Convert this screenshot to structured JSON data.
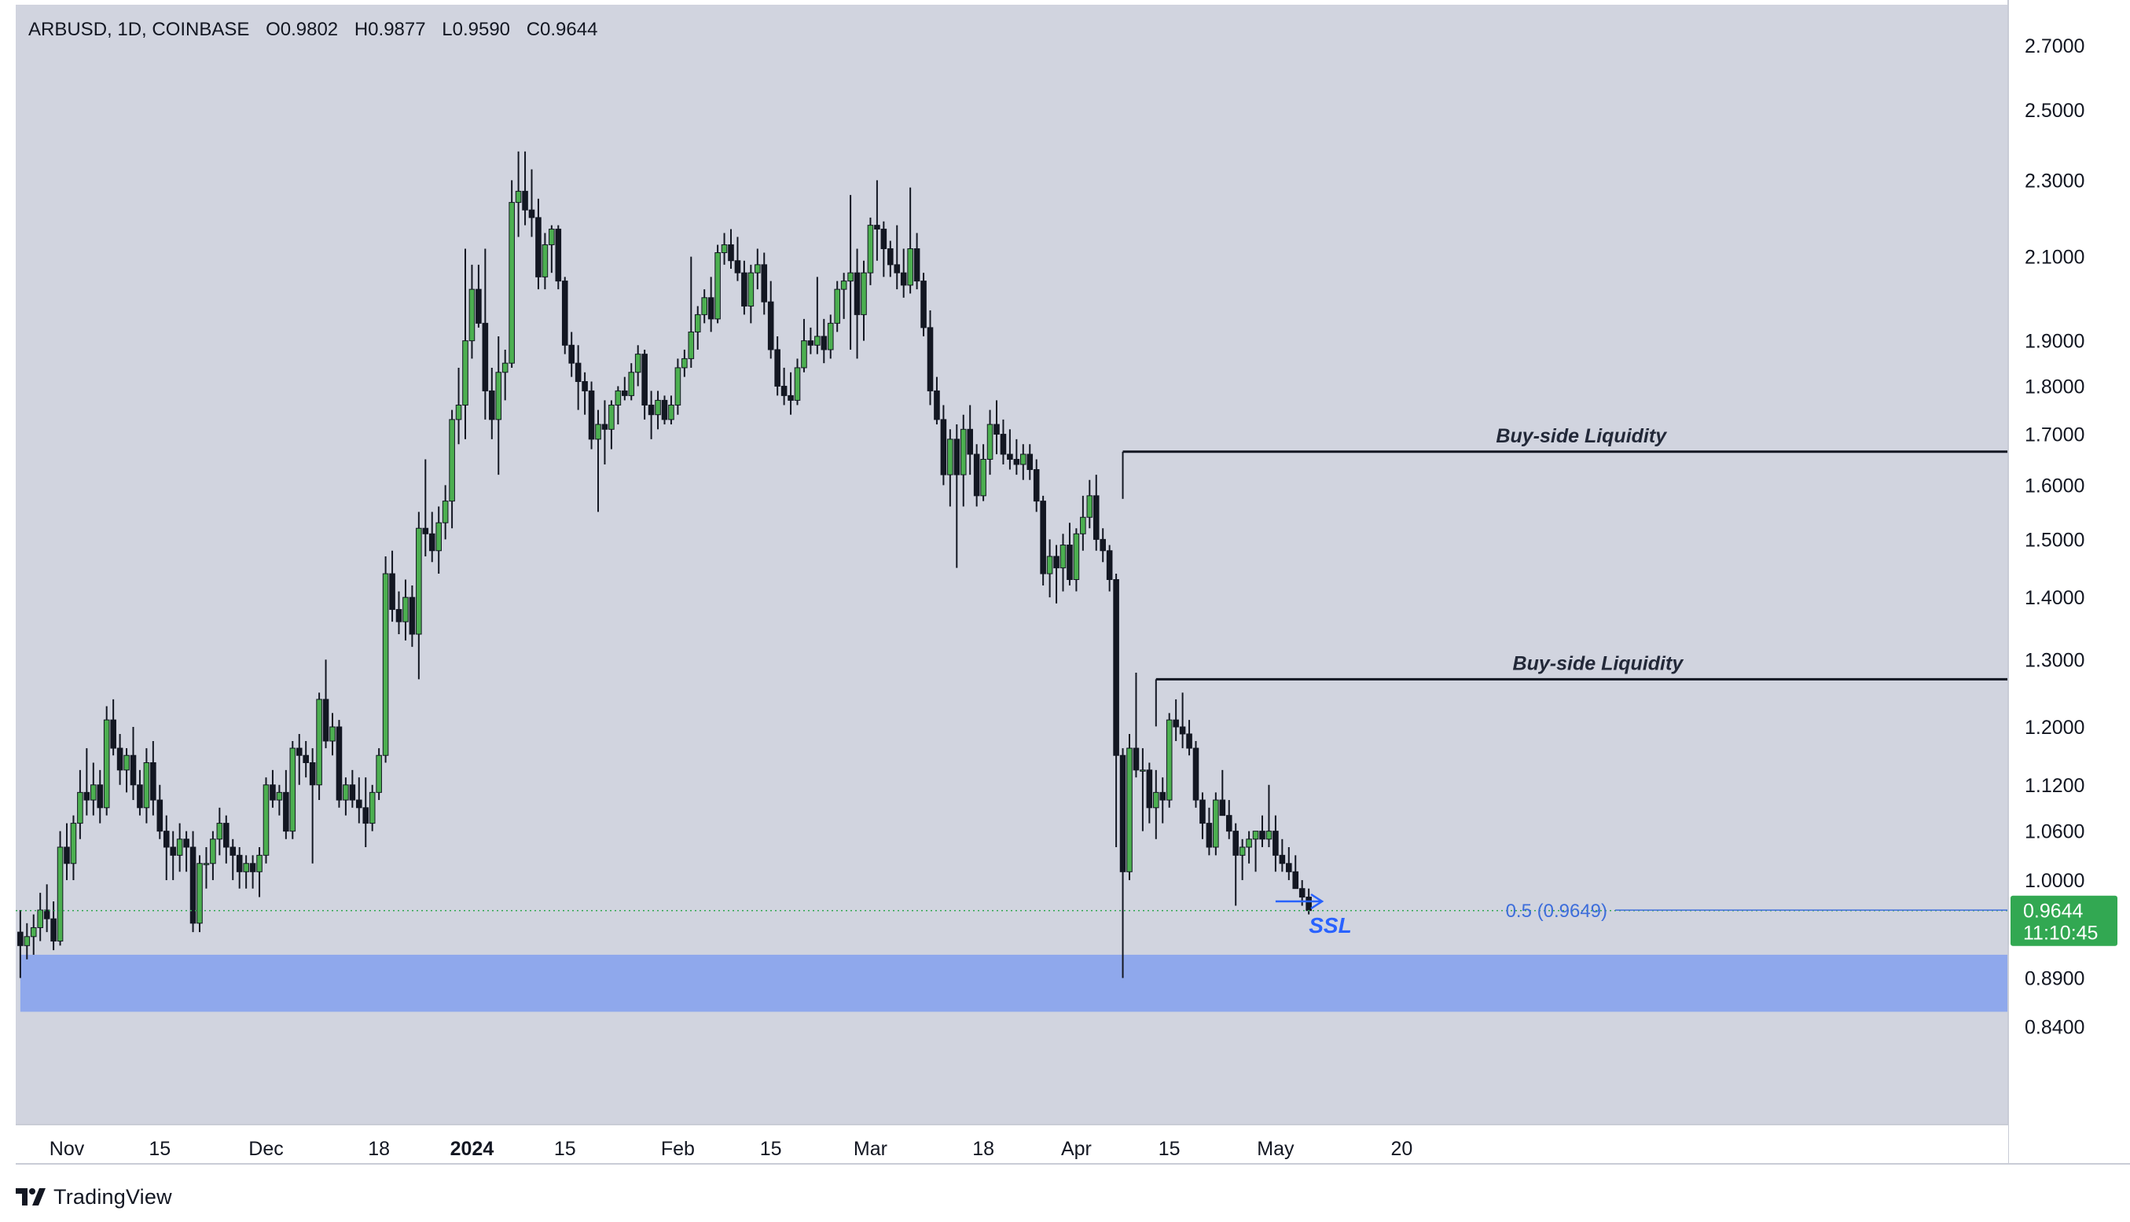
{
  "header": {
    "symbol": "ARBUSD, 1D, COINBASE",
    "open_label": "O",
    "open": "0.9802",
    "high_label": "H",
    "high": "0.9877",
    "low_label": "L",
    "low": "0.9590",
    "close_label": "C",
    "close": "0.9644"
  },
  "price_tag": {
    "price": "0.9644",
    "countdown": "11:10:45"
  },
  "brand": {
    "name": "TradingView"
  },
  "colors": {
    "background": "#d1d4df",
    "up": "#4caf50",
    "down": "#131722",
    "zone": "#8fa8ec",
    "ssl": "#2962ff",
    "fib": "#3d6ddb",
    "tag": "#32a852"
  },
  "chart_data": {
    "type": "candlestick",
    "y_scale": "log",
    "ylim": [
      0.79,
      2.72
    ],
    "y_ticks": [
      2.7,
      2.5,
      2.3,
      2.1,
      1.9,
      1.8,
      1.7,
      1.6,
      1.5,
      1.4,
      1.3,
      1.2,
      1.12,
      1.06,
      1.0,
      0.89,
      0.84
    ],
    "y_tick_labels": [
      "2.7000",
      "2.5000",
      "2.3000",
      "2.1000",
      "1.9000",
      "1.8000",
      "1.7000",
      "1.6000",
      "1.5000",
      "1.4000",
      "1.3000",
      "1.2000",
      "1.1200",
      "1.0600",
      "1.0000",
      "0.8900",
      "0.8400"
    ],
    "x_start": "2023-10-25",
    "x_end": "2024-05-23",
    "x_ticks": [
      {
        "date": "2023-11-01",
        "label": "Nov",
        "bold": false
      },
      {
        "date": "2023-11-15",
        "label": "15",
        "bold": false
      },
      {
        "date": "2023-12-01",
        "label": "Dec",
        "bold": false
      },
      {
        "date": "2023-12-18",
        "label": "18",
        "bold": false
      },
      {
        "date": "2024-01-01",
        "label": "2024",
        "bold": true
      },
      {
        "date": "2024-01-15",
        "label": "15",
        "bold": false
      },
      {
        "date": "2024-02-01",
        "label": "Feb",
        "bold": false
      },
      {
        "date": "2024-02-15",
        "label": "15",
        "bold": false
      },
      {
        "date": "2024-03-01",
        "label": "Mar",
        "bold": false
      },
      {
        "date": "2024-03-18",
        "label": "18",
        "bold": false
      },
      {
        "date": "2024-04-01",
        "label": "Apr",
        "bold": false
      },
      {
        "date": "2024-04-15",
        "label": "15",
        "bold": false
      },
      {
        "date": "2024-05-01",
        "label": "May",
        "bold": false
      },
      {
        "date": "2024-05-20",
        "label": "20",
        "bold": false
      }
    ],
    "first_date": "2023-10-25",
    "ohlc": [
      [
        0.94,
        0.965,
        0.89,
        0.925
      ],
      [
        0.925,
        0.95,
        0.91,
        0.935
      ],
      [
        0.935,
        0.96,
        0.915,
        0.945
      ],
      [
        0.945,
        0.985,
        0.93,
        0.965
      ],
      [
        0.965,
        0.995,
        0.94,
        0.955
      ],
      [
        0.955,
        0.975,
        0.92,
        0.93
      ],
      [
        0.93,
        1.06,
        0.925,
        1.04
      ],
      [
        1.04,
        1.07,
        1.0,
        1.02
      ],
      [
        1.02,
        1.08,
        1.0,
        1.07
      ],
      [
        1.07,
        1.14,
        1.05,
        1.11
      ],
      [
        1.11,
        1.17,
        1.08,
        1.1
      ],
      [
        1.1,
        1.15,
        1.08,
        1.12
      ],
      [
        1.12,
        1.14,
        1.07,
        1.09
      ],
      [
        1.09,
        1.23,
        1.08,
        1.21
      ],
      [
        1.21,
        1.24,
        1.16,
        1.17
      ],
      [
        1.17,
        1.19,
        1.12,
        1.14
      ],
      [
        1.14,
        1.17,
        1.11,
        1.16
      ],
      [
        1.16,
        1.2,
        1.1,
        1.12
      ],
      [
        1.12,
        1.14,
        1.08,
        1.09
      ],
      [
        1.09,
        1.17,
        1.07,
        1.15
      ],
      [
        1.15,
        1.18,
        1.08,
        1.1
      ],
      [
        1.1,
        1.12,
        1.05,
        1.06
      ],
      [
        1.06,
        1.08,
        1.0,
        1.04
      ],
      [
        1.04,
        1.06,
        1.0,
        1.03
      ],
      [
        1.03,
        1.07,
        1.01,
        1.05
      ],
      [
        1.05,
        1.06,
        1.01,
        1.04
      ],
      [
        1.04,
        1.06,
        0.94,
        0.95
      ],
      [
        0.95,
        1.03,
        0.94,
        1.02
      ],
      [
        1.02,
        1.04,
        0.99,
        1.02
      ],
      [
        1.02,
        1.06,
        1.0,
        1.05
      ],
      [
        1.05,
        1.09,
        1.03,
        1.07
      ],
      [
        1.07,
        1.08,
        1.02,
        1.04
      ],
      [
        1.04,
        1.05,
        1.0,
        1.03
      ],
      [
        1.03,
        1.04,
        0.99,
        1.01
      ],
      [
        1.01,
        1.03,
        0.99,
        1.02
      ],
      [
        1.02,
        1.03,
        0.99,
        1.01
      ],
      [
        1.01,
        1.04,
        0.98,
        1.03
      ],
      [
        1.03,
        1.13,
        1.02,
        1.12
      ],
      [
        1.12,
        1.14,
        1.09,
        1.1
      ],
      [
        1.1,
        1.12,
        1.08,
        1.11
      ],
      [
        1.11,
        1.14,
        1.05,
        1.06
      ],
      [
        1.06,
        1.18,
        1.05,
        1.17
      ],
      [
        1.17,
        1.19,
        1.12,
        1.16
      ],
      [
        1.16,
        1.18,
        1.13,
        1.15
      ],
      [
        1.15,
        1.17,
        1.02,
        1.12
      ],
      [
        1.12,
        1.25,
        1.1,
        1.24
      ],
      [
        1.24,
        1.3,
        1.17,
        1.18
      ],
      [
        1.18,
        1.22,
        1.16,
        1.2
      ],
      [
        1.2,
        1.21,
        1.09,
        1.1
      ],
      [
        1.1,
        1.13,
        1.08,
        1.12
      ],
      [
        1.12,
        1.14,
        1.09,
        1.1
      ],
      [
        1.1,
        1.13,
        1.07,
        1.09
      ],
      [
        1.09,
        1.13,
        1.04,
        1.07
      ],
      [
        1.07,
        1.12,
        1.06,
        1.11
      ],
      [
        1.11,
        1.17,
        1.1,
        1.16
      ],
      [
        1.16,
        1.47,
        1.15,
        1.44
      ],
      [
        1.44,
        1.48,
        1.36,
        1.38
      ],
      [
        1.38,
        1.41,
        1.34,
        1.36
      ],
      [
        1.36,
        1.43,
        1.33,
        1.4
      ],
      [
        1.4,
        1.42,
        1.32,
        1.34
      ],
      [
        1.34,
        1.55,
        1.27,
        1.52
      ],
      [
        1.52,
        1.65,
        1.47,
        1.51
      ],
      [
        1.51,
        1.55,
        1.46,
        1.48
      ],
      [
        1.48,
        1.56,
        1.44,
        1.53
      ],
      [
        1.53,
        1.6,
        1.5,
        1.57
      ],
      [
        1.57,
        1.75,
        1.52,
        1.73
      ],
      [
        1.73,
        1.84,
        1.68,
        1.76
      ],
      [
        1.76,
        2.12,
        1.69,
        1.9
      ],
      [
        1.9,
        2.08,
        1.86,
        2.02
      ],
      [
        2.02,
        2.08,
        1.93,
        1.94
      ],
      [
        1.94,
        2.12,
        1.73,
        1.79
      ],
      [
        1.79,
        1.84,
        1.69,
        1.73
      ],
      [
        1.73,
        1.91,
        1.62,
        1.83
      ],
      [
        1.83,
        1.88,
        1.77,
        1.85
      ],
      [
        1.85,
        2.3,
        1.84,
        2.24
      ],
      [
        2.24,
        2.38,
        2.15,
        2.27
      ],
      [
        2.27,
        2.38,
        2.18,
        2.22
      ],
      [
        2.22,
        2.33,
        2.15,
        2.2
      ],
      [
        2.2,
        2.25,
        2.02,
        2.05
      ],
      [
        2.05,
        2.16,
        2.02,
        2.13
      ],
      [
        2.13,
        2.18,
        2.06,
        2.17
      ],
      [
        2.17,
        2.18,
        2.02,
        2.04
      ],
      [
        2.04,
        2.05,
        1.87,
        1.89
      ],
      [
        1.89,
        1.92,
        1.82,
        1.85
      ],
      [
        1.85,
        1.89,
        1.75,
        1.81
      ],
      [
        1.81,
        1.83,
        1.74,
        1.79
      ],
      [
        1.79,
        1.81,
        1.67,
        1.69
      ],
      [
        1.69,
        1.75,
        1.55,
        1.72
      ],
      [
        1.72,
        1.77,
        1.64,
        1.71
      ],
      [
        1.71,
        1.77,
        1.67,
        1.76
      ],
      [
        1.76,
        1.8,
        1.72,
        1.79
      ],
      [
        1.79,
        1.82,
        1.77,
        1.78
      ],
      [
        1.78,
        1.85,
        1.77,
        1.83
      ],
      [
        1.83,
        1.89,
        1.8,
        1.87
      ],
      [
        1.87,
        1.88,
        1.73,
        1.76
      ],
      [
        1.76,
        1.79,
        1.69,
        1.74
      ],
      [
        1.74,
        1.79,
        1.71,
        1.77
      ],
      [
        1.77,
        1.78,
        1.72,
        1.73
      ],
      [
        1.73,
        1.78,
        1.72,
        1.76
      ],
      [
        1.76,
        1.86,
        1.74,
        1.84
      ],
      [
        1.84,
        1.88,
        1.82,
        1.86
      ],
      [
        1.86,
        2.1,
        1.84,
        1.92
      ],
      [
        1.92,
        1.98,
        1.88,
        1.96
      ],
      [
        1.96,
        2.02,
        1.94,
        2.0
      ],
      [
        2.0,
        2.05,
        1.92,
        1.95
      ],
      [
        1.95,
        2.13,
        1.94,
        2.11
      ],
      [
        2.11,
        2.16,
        2.08,
        2.13
      ],
      [
        2.13,
        2.17,
        2.07,
        2.09
      ],
      [
        2.09,
        2.15,
        2.04,
        2.06
      ],
      [
        2.06,
        2.09,
        1.96,
        1.98
      ],
      [
        1.98,
        2.08,
        1.94,
        2.06
      ],
      [
        2.06,
        2.12,
        2.02,
        2.08
      ],
      [
        2.08,
        2.11,
        1.96,
        1.99
      ],
      [
        1.99,
        2.04,
        1.86,
        1.88
      ],
      [
        1.88,
        1.91,
        1.78,
        1.8
      ],
      [
        1.8,
        1.84,
        1.76,
        1.78
      ],
      [
        1.78,
        1.83,
        1.74,
        1.77
      ],
      [
        1.77,
        1.86,
        1.76,
        1.84
      ],
      [
        1.84,
        1.95,
        1.83,
        1.9
      ],
      [
        1.9,
        1.93,
        1.87,
        1.89
      ],
      [
        1.89,
        2.05,
        1.87,
        1.91
      ],
      [
        1.91,
        1.95,
        1.85,
        1.88
      ],
      [
        1.88,
        1.96,
        1.86,
        1.94
      ],
      [
        1.94,
        2.04,
        1.92,
        2.02
      ],
      [
        2.02,
        2.06,
        1.95,
        2.04
      ],
      [
        2.04,
        2.26,
        1.88,
        2.06
      ],
      [
        2.06,
        2.12,
        1.86,
        1.96
      ],
      [
        1.96,
        2.09,
        1.9,
        2.06
      ],
      [
        2.06,
        2.2,
        2.03,
        2.18
      ],
      [
        2.18,
        2.3,
        2.09,
        2.17
      ],
      [
        2.17,
        2.19,
        2.05,
        2.12
      ],
      [
        2.12,
        2.14,
        2.05,
        2.08
      ],
      [
        2.08,
        2.18,
        2.02,
        2.06
      ],
      [
        2.06,
        2.12,
        2.0,
        2.03
      ],
      [
        2.03,
        2.28,
        2.01,
        2.12
      ],
      [
        2.12,
        2.16,
        2.02,
        2.04
      ],
      [
        2.04,
        2.06,
        1.91,
        1.93
      ],
      [
        1.93,
        1.97,
        1.76,
        1.79
      ],
      [
        1.79,
        1.82,
        1.72,
        1.73
      ],
      [
        1.73,
        1.76,
        1.6,
        1.62
      ],
      [
        1.62,
        1.71,
        1.56,
        1.69
      ],
      [
        1.69,
        1.72,
        1.45,
        1.62
      ],
      [
        1.62,
        1.74,
        1.56,
        1.71
      ],
      [
        1.71,
        1.76,
        1.62,
        1.66
      ],
      [
        1.66,
        1.68,
        1.56,
        1.58
      ],
      [
        1.58,
        1.68,
        1.57,
        1.65
      ],
      [
        1.65,
        1.75,
        1.62,
        1.72
      ],
      [
        1.72,
        1.77,
        1.66,
        1.7
      ],
      [
        1.7,
        1.73,
        1.64,
        1.66
      ],
      [
        1.66,
        1.71,
        1.63,
        1.65
      ],
      [
        1.65,
        1.69,
        1.62,
        1.64
      ],
      [
        1.64,
        1.68,
        1.61,
        1.66
      ],
      [
        1.66,
        1.68,
        1.61,
        1.63
      ],
      [
        1.63,
        1.65,
        1.55,
        1.57
      ],
      [
        1.57,
        1.58,
        1.42,
        1.44
      ],
      [
        1.44,
        1.5,
        1.4,
        1.47
      ],
      [
        1.47,
        1.49,
        1.39,
        1.45
      ],
      [
        1.45,
        1.51,
        1.41,
        1.49
      ],
      [
        1.49,
        1.53,
        1.42,
        1.43
      ],
      [
        1.43,
        1.52,
        1.41,
        1.51
      ],
      [
        1.51,
        1.58,
        1.48,
        1.54
      ],
      [
        1.54,
        1.61,
        1.52,
        1.58
      ],
      [
        1.58,
        1.62,
        1.48,
        1.5
      ],
      [
        1.5,
        1.52,
        1.46,
        1.48
      ],
      [
        1.48,
        1.49,
        1.41,
        1.43
      ],
      [
        1.43,
        1.44,
        1.04,
        1.16
      ],
      [
        1.16,
        1.17,
        0.89,
        1.01
      ],
      [
        1.01,
        1.19,
        1.0,
        1.17
      ],
      [
        1.17,
        1.28,
        1.13,
        1.14
      ],
      [
        1.14,
        1.17,
        1.06,
        1.14
      ],
      [
        1.14,
        1.15,
        1.07,
        1.09
      ],
      [
        1.09,
        1.14,
        1.05,
        1.11
      ],
      [
        1.11,
        1.13,
        1.07,
        1.1
      ],
      [
        1.1,
        1.22,
        1.09,
        1.21
      ],
      [
        1.21,
        1.24,
        1.18,
        1.2
      ],
      [
        1.2,
        1.25,
        1.17,
        1.19
      ],
      [
        1.19,
        1.21,
        1.16,
        1.17
      ],
      [
        1.17,
        1.18,
        1.09,
        1.1
      ],
      [
        1.1,
        1.11,
        1.05,
        1.07
      ],
      [
        1.07,
        1.09,
        1.03,
        1.04
      ],
      [
        1.04,
        1.11,
        1.03,
        1.1
      ],
      [
        1.1,
        1.14,
        1.08,
        1.08
      ],
      [
        1.08,
        1.1,
        1.05,
        1.06
      ],
      [
        1.06,
        1.07,
        0.97,
        1.03
      ],
      [
        1.03,
        1.05,
        1.0,
        1.04
      ],
      [
        1.04,
        1.06,
        1.02,
        1.05
      ],
      [
        1.05,
        1.06,
        1.01,
        1.06
      ],
      [
        1.06,
        1.08,
        1.04,
        1.05
      ],
      [
        1.05,
        1.12,
        1.04,
        1.06
      ],
      [
        1.06,
        1.08,
        1.01,
        1.03
      ],
      [
        1.03,
        1.05,
        1.01,
        1.02
      ],
      [
        1.02,
        1.04,
        1.0,
        1.01
      ],
      [
        1.01,
        1.03,
        0.99,
        0.99
      ],
      [
        0.99,
        1.0,
        0.97,
        0.98
      ],
      [
        0.98,
        0.99,
        0.96,
        0.9644
      ]
    ],
    "zones": [
      {
        "name": "demand-zone",
        "from": 0.855,
        "to": 0.915,
        "x_from": "2023-10-25"
      }
    ],
    "hlines": [
      {
        "name": "buy-side-liquidity-1",
        "label": "Buy-side Liquidity",
        "price": 1.665,
        "x_from": "2024-04-08"
      },
      {
        "name": "buy-side-liquidity-2",
        "label": "Buy-side Liquidity",
        "price": 1.27,
        "x_from": "2024-04-13"
      }
    ],
    "fib_level": {
      "label": "0.5 (0.9649)",
      "price": 0.9649
    },
    "ssl": {
      "label": "SSL",
      "price": 0.975,
      "x_from": "2024-05-01",
      "x_to": "2024-05-08"
    },
    "last_price": 0.9644
  }
}
